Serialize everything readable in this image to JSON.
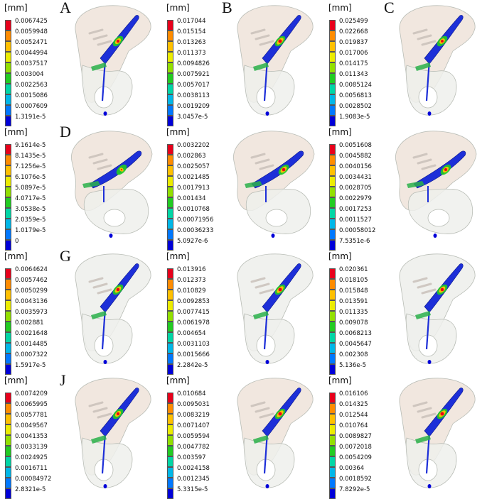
{
  "panels": [
    {
      "unit": "[mm]",
      "letter": "A",
      "labels": [
        "0.0067425",
        "0.0059948",
        "0.0052471",
        "0.0044994",
        "0.0037517",
        "0.003004",
        "0.0022563",
        "0.0015086",
        "0.0007609",
        "1.3191e-5"
      ],
      "view": "lateral",
      "heat": 0.8
    },
    {
      "unit": "[mm]",
      "letter": "B",
      "labels": [
        "0.017044",
        "0.015154",
        "0.013263",
        "0.011373",
        "0.0094826",
        "0.0075921",
        "0.0057017",
        "0.0038113",
        "0.0019209",
        "3.0457e-5"
      ],
      "view": "lateral",
      "heat": 1.0
    },
    {
      "unit": "[mm]",
      "letter": "C",
      "labels": [
        "0.025499",
        "0.022668",
        "0.019837",
        "0.017006",
        "0.014175",
        "0.011343",
        "0.0085124",
        "0.0056813",
        "0.0028502",
        "1.9083e-5"
      ],
      "view": "lateral",
      "heat": 0.7
    },
    {
      "unit": "[mm]",
      "letter": "D",
      "labels": [
        "9.1614e-5",
        "8.1435e-5",
        "7.1256e-5",
        "6.1076e-5",
        "5.0897e-5",
        "4.0717e-5",
        "3.0538e-5",
        "2.0359e-5",
        "1.0179e-5",
        "0"
      ],
      "view": "top",
      "heat": 0.3
    },
    {
      "unit": "[mm]",
      "letter": "",
      "labels": [
        "0.0032202",
        "0.002863",
        "0.0025057",
        "0.0021485",
        "0.0017913",
        "0.001434",
        "0.0010768",
        "0.00071956",
        "0.00036233",
        "5.0927e-6"
      ],
      "view": "top",
      "heat": 0.9
    },
    {
      "unit": "[mm]",
      "letter": "",
      "labels": [
        "0.0051608",
        "0.0045882",
        "0.0040156",
        "0.0034431",
        "0.0028705",
        "0.0022979",
        "0.0017253",
        "0.0011527",
        "0.00058012",
        "7.5351e-6"
      ],
      "view": "top",
      "heat": 0.8
    },
    {
      "unit": "[mm]",
      "letter": "G",
      "labels": [
        "0.0064624",
        "0.0057462",
        "0.0050299",
        "0.0043136",
        "0.0035973",
        "0.002881",
        "0.0021648",
        "0.0014485",
        "0.0007322",
        "1.5917e-5"
      ],
      "view": "medial",
      "heat": 0.9
    },
    {
      "unit": "[mm]",
      "letter": "",
      "labels": [
        "0.013916",
        "0.012373",
        "0.010829",
        "0.0092853",
        "0.0077415",
        "0.0061978",
        "0.004654",
        "0.0031103",
        "0.0015666",
        "2.2842e-5"
      ],
      "view": "medial",
      "heat": 1.0
    },
    {
      "unit": "[mm]",
      "letter": "",
      "labels": [
        "0.020361",
        "0.018105",
        "0.015848",
        "0.013591",
        "0.011335",
        "0.009078",
        "0.0068213",
        "0.0045647",
        "0.002308",
        "5.136e-5"
      ],
      "view": "medial",
      "heat": 0.9
    },
    {
      "unit": "[mm]",
      "letter": "J",
      "labels": [
        "0.0074209",
        "0.0065995",
        "0.0057781",
        "0.0049567",
        "0.0041353",
        "0.0033139",
        "0.0024925",
        "0.0016711",
        "0.00084972",
        "2.8321e-5"
      ],
      "view": "lateral",
      "heat": 0.8
    },
    {
      "unit": "[mm]",
      "letter": "",
      "labels": [
        "0.010684",
        "0.0095031",
        "0.0083219",
        "0.0071407",
        "0.0059594",
        "0.0047782",
        "0.003597",
        "0.0024158",
        "0.0012345",
        "5.3315e-5"
      ],
      "view": "lateral",
      "heat": 1.0
    },
    {
      "unit": "[mm]",
      "letter": "",
      "labels": [
        "0.016106",
        "0.014325",
        "0.012544",
        "0.010764",
        "0.0089827",
        "0.0072018",
        "0.0054209",
        "0.00364",
        "0.0018592",
        "7.8292e-5"
      ],
      "view": "lateral",
      "heat": 1.0
    }
  ],
  "legend_colors": [
    "#e8001b",
    "#ff8c00",
    "#ffc000",
    "#ecec00",
    "#93e000",
    "#22cc22",
    "#00d6a6",
    "#00b7e8",
    "#0078ff",
    "#0000d8"
  ],
  "bone_colors": {
    "top": "#f0e4dc",
    "body": "#eef0ec",
    "edge": "#b9bdb6"
  }
}
